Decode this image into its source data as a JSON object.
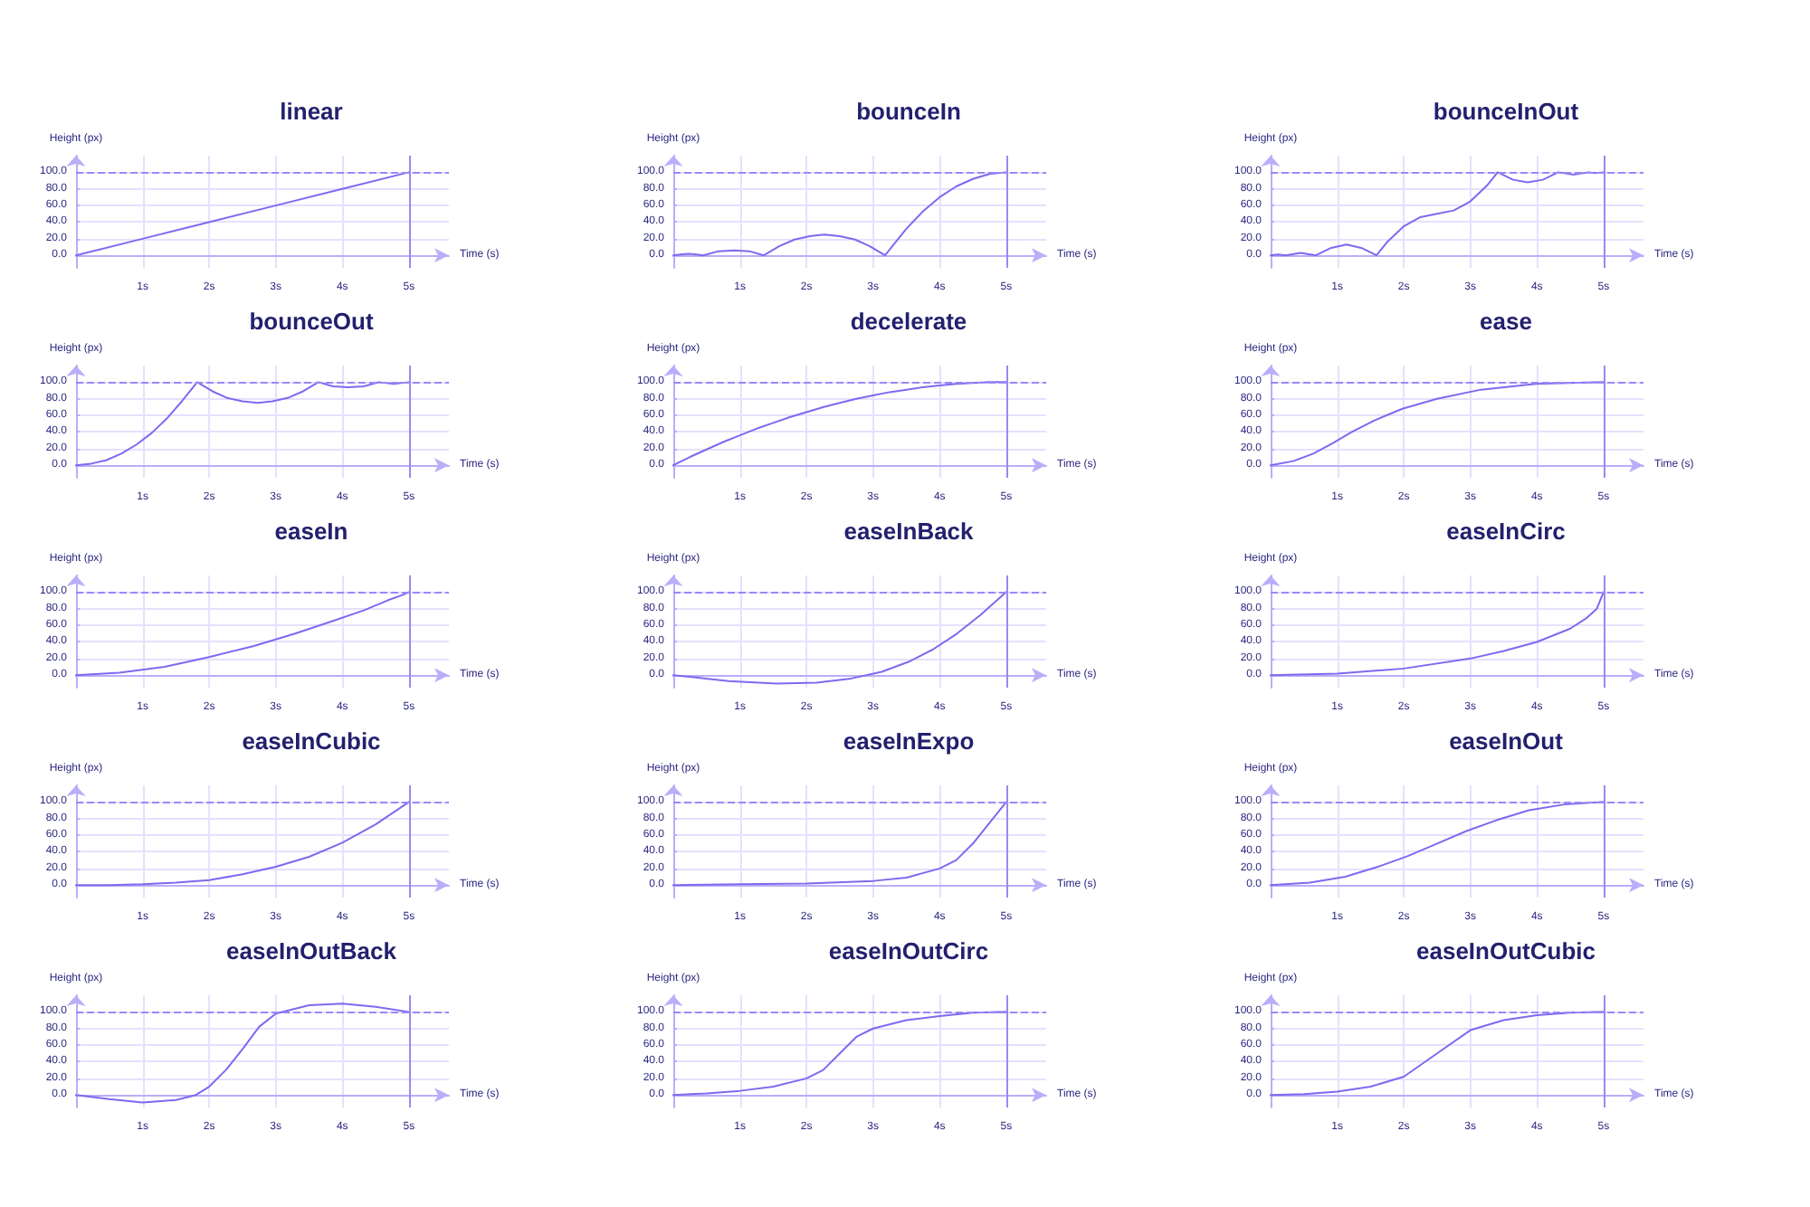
{
  "chart_data": [
    {
      "type": "line",
      "title": "linear",
      "xlabel": "Time (s)",
      "ylabel": "Height (px)",
      "color": "#8068f0",
      "x": [
        0,
        1,
        2,
        3,
        4,
        5
      ],
      "values": [
        0,
        20,
        40,
        60,
        80,
        100
      ],
      "xlim": [
        0,
        5.6
      ],
      "ylim": [
        -15,
        120
      ],
      "xticks": [
        {
          "value": 1,
          "label": "1s"
        },
        {
          "value": 2,
          "label": "2s"
        },
        {
          "value": 3,
          "label": "3s"
        },
        {
          "value": 4,
          "label": "4s"
        },
        {
          "value": 5,
          "label": "5s"
        }
      ],
      "yticks": [
        {
          "value": 0,
          "label": "0.0"
        },
        {
          "value": 20,
          "label": "20.0"
        },
        {
          "value": 40,
          "label": "40.0"
        },
        {
          "value": 60,
          "label": "60.0"
        },
        {
          "value": 80,
          "label": "80.0"
        },
        {
          "value": 100,
          "label": "100.0"
        }
      ],
      "grid": true,
      "ref_lines": [
        {
          "axis": "y",
          "value": 100,
          "line_style": "dashed",
          "color": "#9b88f5"
        },
        {
          "axis": "x",
          "value": 5,
          "line_style": "solid",
          "color": "#9b88f5"
        }
      ]
    },
    {
      "type": "line",
      "title": "bounceIn",
      "xlabel": "Time (s)",
      "ylabel": "Height (px)",
      "color": "#8068f0",
      "x": [
        0,
        0.11,
        0.23,
        0.34,
        0.45,
        0.68,
        0.91,
        1.14,
        1.36,
        1.59,
        1.82,
        2.05,
        2.27,
        2.5,
        2.73,
        2.95,
        3.18,
        3.5,
        3.75,
        4,
        4.25,
        4.5,
        4.75,
        5
      ],
      "values": [
        0,
        1,
        2,
        1,
        0,
        5,
        6,
        5,
        0,
        11,
        19,
        23,
        25,
        23,
        19,
        11,
        0,
        32,
        53,
        70,
        83,
        92,
        98,
        100
      ],
      "xlim": [
        0,
        5.6
      ],
      "ylim": [
        -15,
        120
      ],
      "xticks": [
        {
          "value": 1,
          "label": "1s"
        },
        {
          "value": 2,
          "label": "2s"
        },
        {
          "value": 3,
          "label": "3s"
        },
        {
          "value": 4,
          "label": "4s"
        },
        {
          "value": 5,
          "label": "5s"
        }
      ],
      "yticks": [
        {
          "value": 0,
          "label": "0.0"
        },
        {
          "value": 20,
          "label": "20.0"
        },
        {
          "value": 40,
          "label": "40.0"
        },
        {
          "value": 60,
          "label": "60.0"
        },
        {
          "value": 80,
          "label": "80.0"
        },
        {
          "value": 100,
          "label": "100.0"
        }
      ],
      "grid": true,
      "ref_lines": [
        {
          "axis": "y",
          "value": 100,
          "line_style": "dashed",
          "color": "#9b88f5"
        },
        {
          "axis": "x",
          "value": 5,
          "line_style": "solid",
          "color": "#9b88f5"
        }
      ]
    },
    {
      "type": "line",
      "title": "bounceInOut",
      "xlabel": "Time (s)",
      "ylabel": "Height (px)",
      "color": "#8068f0",
      "x": [
        0,
        0.11,
        0.23,
        0.45,
        0.68,
        0.91,
        1.14,
        1.36,
        1.59,
        1.75,
        2,
        2.25,
        2.5,
        2.75,
        3,
        3.25,
        3.41,
        3.64,
        3.86,
        4.09,
        4.32,
        4.55,
        4.77,
        4.89,
        5
      ],
      "values": [
        0,
        1,
        0,
        3,
        0,
        9,
        13,
        9,
        0,
        16,
        35,
        46,
        50,
        54,
        65,
        84,
        100,
        91,
        88,
        91,
        100,
        97,
        100,
        99,
        100
      ],
      "xlim": [
        0,
        5.6
      ],
      "ylim": [
        -15,
        120
      ],
      "xticks": [
        {
          "value": 1,
          "label": "1s"
        },
        {
          "value": 2,
          "label": "2s"
        },
        {
          "value": 3,
          "label": "3s"
        },
        {
          "value": 4,
          "label": "4s"
        },
        {
          "value": 5,
          "label": "5s"
        }
      ],
      "yticks": [
        {
          "value": 0,
          "label": "0.0"
        },
        {
          "value": 20,
          "label": "20.0"
        },
        {
          "value": 40,
          "label": "40.0"
        },
        {
          "value": 60,
          "label": "60.0"
        },
        {
          "value": 80,
          "label": "80.0"
        },
        {
          "value": 100,
          "label": "100.0"
        }
      ],
      "grid": true,
      "ref_lines": [
        {
          "axis": "y",
          "value": 100,
          "line_style": "dashed",
          "color": "#9b88f5"
        },
        {
          "axis": "x",
          "value": 5,
          "line_style": "solid",
          "color": "#9b88f5"
        }
      ]
    },
    {
      "type": "line",
      "title": "bounceOut",
      "xlabel": "Time (s)",
      "ylabel": "Height (px)",
      "color": "#8068f0",
      "x": [
        0,
        0.23,
        0.45,
        0.68,
        0.91,
        1.14,
        1.36,
        1.59,
        1.82,
        2.05,
        2.27,
        2.5,
        2.73,
        2.95,
        3.18,
        3.41,
        3.64,
        3.86,
        4.09,
        4.32,
        4.55,
        4.77,
        5
      ],
      "values": [
        0,
        2,
        6,
        14,
        25,
        39,
        56,
        77,
        100,
        89,
        81,
        77,
        75,
        77,
        81,
        89,
        100,
        95,
        94,
        95,
        100,
        98,
        100
      ],
      "xlim": [
        0,
        5.6
      ],
      "ylim": [
        -15,
        120
      ],
      "xticks": [
        {
          "value": 1,
          "label": "1s"
        },
        {
          "value": 2,
          "label": "2s"
        },
        {
          "value": 3,
          "label": "3s"
        },
        {
          "value": 4,
          "label": "4s"
        },
        {
          "value": 5,
          "label": "5s"
        }
      ],
      "yticks": [
        {
          "value": 0,
          "label": "0.0"
        },
        {
          "value": 20,
          "label": "20.0"
        },
        {
          "value": 40,
          "label": "40.0"
        },
        {
          "value": 60,
          "label": "60.0"
        },
        {
          "value": 80,
          "label": "80.0"
        },
        {
          "value": 100,
          "label": "100.0"
        }
      ],
      "grid": true,
      "ref_lines": [
        {
          "axis": "y",
          "value": 100,
          "line_style": "dashed",
          "color": "#9b88f5"
        },
        {
          "axis": "x",
          "value": 5,
          "line_style": "solid",
          "color": "#9b88f5"
        }
      ]
    },
    {
      "type": "line",
      "title": "decelerate",
      "xlabel": "Time (s)",
      "ylabel": "Height (px)",
      "color": "#8068f0",
      "x": [
        0,
        0.25,
        0.5,
        0.75,
        1,
        1.25,
        1.5,
        1.75,
        2,
        2.25,
        2.5,
        2.75,
        3,
        3.25,
        3.5,
        3.75,
        4,
        4.25,
        4.5,
        4.75,
        5
      ],
      "values": [
        0,
        10,
        19,
        28,
        36,
        44,
        51,
        58,
        64,
        70,
        75,
        80,
        84,
        88,
        91,
        94,
        96,
        98,
        99,
        100,
        100
      ],
      "xlim": [
        0,
        5.6
      ],
      "ylim": [
        -15,
        120
      ],
      "xticks": [
        {
          "value": 1,
          "label": "1s"
        },
        {
          "value": 2,
          "label": "2s"
        },
        {
          "value": 3,
          "label": "3s"
        },
        {
          "value": 4,
          "label": "4s"
        },
        {
          "value": 5,
          "label": "5s"
        }
      ],
      "yticks": [
        {
          "value": 0,
          "label": "0.0"
        },
        {
          "value": 20,
          "label": "20.0"
        },
        {
          "value": 40,
          "label": "40.0"
        },
        {
          "value": 60,
          "label": "60.0"
        },
        {
          "value": 80,
          "label": "80.0"
        },
        {
          "value": 100,
          "label": "100.0"
        }
      ],
      "grid": true,
      "ref_lines": [
        {
          "axis": "y",
          "value": 100,
          "line_style": "dashed",
          "color": "#9b88f5"
        },
        {
          "axis": "x",
          "value": 5,
          "line_style": "solid",
          "color": "#9b88f5"
        }
      ]
    },
    {
      "type": "line",
      "title": "ease",
      "xlabel": "Time (s)",
      "ylabel": "Height (px)",
      "color": "#8068f0",
      "x": [
        0,
        0.34,
        0.64,
        0.92,
        1.22,
        1.56,
        1.98,
        2.5,
        3.16,
        3.98,
        5
      ],
      "values": [
        0,
        5,
        14,
        26,
        40,
        54,
        68,
        80,
        91,
        98,
        100
      ],
      "xlim": [
        0,
        5.6
      ],
      "ylim": [
        -15,
        120
      ],
      "xticks": [
        {
          "value": 1,
          "label": "1s"
        },
        {
          "value": 2,
          "label": "2s"
        },
        {
          "value": 3,
          "label": "3s"
        },
        {
          "value": 4,
          "label": "4s"
        },
        {
          "value": 5,
          "label": "5s"
        }
      ],
      "yticks": [
        {
          "value": 0,
          "label": "0.0"
        },
        {
          "value": 20,
          "label": "20.0"
        },
        {
          "value": 40,
          "label": "40.0"
        },
        {
          "value": 60,
          "label": "60.0"
        },
        {
          "value": 80,
          "label": "80.0"
        },
        {
          "value": 100,
          "label": "100.0"
        }
      ],
      "grid": true,
      "ref_lines": [
        {
          "axis": "y",
          "value": 100,
          "line_style": "dashed",
          "color": "#9b88f5"
        },
        {
          "axis": "x",
          "value": 5,
          "line_style": "solid",
          "color": "#9b88f5"
        }
      ]
    },
    {
      "type": "line",
      "title": "easeIn",
      "xlabel": "Time (s)",
      "ylabel": "Height (px)",
      "color": "#8068f0",
      "x": [
        0,
        0.65,
        1.33,
        2.01,
        2.67,
        3.29,
        3.85,
        4.32,
        4.68,
        4.92,
        5
      ],
      "values": [
        0,
        3,
        10,
        22,
        35,
        50,
        65,
        78,
        90,
        97,
        100
      ],
      "xlim": [
        0,
        5.6
      ],
      "ylim": [
        -15,
        120
      ],
      "xticks": [
        {
          "value": 1,
          "label": "1s"
        },
        {
          "value": 2,
          "label": "2s"
        },
        {
          "value": 3,
          "label": "3s"
        },
        {
          "value": 4,
          "label": "4s"
        },
        {
          "value": 5,
          "label": "5s"
        }
      ],
      "yticks": [
        {
          "value": 0,
          "label": "0.0"
        },
        {
          "value": 20,
          "label": "20.0"
        },
        {
          "value": 40,
          "label": "40.0"
        },
        {
          "value": 60,
          "label": "60.0"
        },
        {
          "value": 80,
          "label": "80.0"
        },
        {
          "value": 100,
          "label": "100.0"
        }
      ],
      "grid": true,
      "ref_lines": [
        {
          "axis": "y",
          "value": 100,
          "line_style": "dashed",
          "color": "#9b88f5"
        },
        {
          "axis": "x",
          "value": 5,
          "line_style": "solid",
          "color": "#9b88f5"
        }
      ]
    },
    {
      "type": "line",
      "title": "easeInBack",
      "xlabel": "Time (s)",
      "ylabel": "Height (px)",
      "color": "#8068f0",
      "x": [
        0,
        0.83,
        1.55,
        2.15,
        2.67,
        3.13,
        3.53,
        3.9,
        4.26,
        4.62,
        5
      ],
      "values": [
        0,
        -7,
        -10,
        -9,
        -4,
        4,
        16,
        31,
        50,
        73,
        100
      ],
      "xlim": [
        0,
        5.6
      ],
      "ylim": [
        -15,
        120
      ],
      "xticks": [
        {
          "value": 1,
          "label": "1s"
        },
        {
          "value": 2,
          "label": "2s"
        },
        {
          "value": 3,
          "label": "3s"
        },
        {
          "value": 4,
          "label": "4s"
        },
        {
          "value": 5,
          "label": "5s"
        }
      ],
      "yticks": [
        {
          "value": 0,
          "label": "0.0"
        },
        {
          "value": 20,
          "label": "20.0"
        },
        {
          "value": 40,
          "label": "40.0"
        },
        {
          "value": 60,
          "label": "60.0"
        },
        {
          "value": 80,
          "label": "80.0"
        },
        {
          "value": 100,
          "label": "100.0"
        }
      ],
      "grid": true,
      "ref_lines": [
        {
          "axis": "y",
          "value": 100,
          "line_style": "dashed",
          "color": "#9b88f5"
        },
        {
          "axis": "x",
          "value": 5,
          "line_style": "solid",
          "color": "#9b88f5"
        }
      ]
    },
    {
      "type": "line",
      "title": "easeInCirc",
      "xlabel": "Time (s)",
      "ylabel": "Height (px)",
      "color": "#8068f0",
      "x": [
        0,
        1,
        2,
        3,
        3.5,
        4,
        4.5,
        4.75,
        4.9,
        5
      ],
      "values": [
        0,
        2,
        8,
        20,
        29,
        40,
        56,
        69,
        80,
        100
      ],
      "xlim": [
        0,
        5.6
      ],
      "ylim": [
        -15,
        120
      ],
      "xticks": [
        {
          "value": 1,
          "label": "1s"
        },
        {
          "value": 2,
          "label": "2s"
        },
        {
          "value": 3,
          "label": "3s"
        },
        {
          "value": 4,
          "label": "4s"
        },
        {
          "value": 5,
          "label": "5s"
        }
      ],
      "yticks": [
        {
          "value": 0,
          "label": "0.0"
        },
        {
          "value": 20,
          "label": "20.0"
        },
        {
          "value": 40,
          "label": "40.0"
        },
        {
          "value": 60,
          "label": "60.0"
        },
        {
          "value": 80,
          "label": "80.0"
        },
        {
          "value": 100,
          "label": "100.0"
        }
      ],
      "grid": true,
      "ref_lines": [
        {
          "axis": "y",
          "value": 100,
          "line_style": "dashed",
          "color": "#9b88f5"
        },
        {
          "axis": "x",
          "value": 5,
          "line_style": "solid",
          "color": "#9b88f5"
        }
      ]
    },
    {
      "type": "line",
      "title": "easeInCubic",
      "xlabel": "Time (s)",
      "ylabel": "Height (px)",
      "color": "#8068f0",
      "x": [
        0,
        0.5,
        1,
        1.5,
        2,
        2.5,
        3,
        3.5,
        4,
        4.5,
        5
      ],
      "values": [
        0,
        0,
        1,
        3,
        6,
        13,
        22,
        34,
        51,
        73,
        100
      ],
      "xlim": [
        0,
        5.6
      ],
      "ylim": [
        -15,
        120
      ],
      "xticks": [
        {
          "value": 1,
          "label": "1s"
        },
        {
          "value": 2,
          "label": "2s"
        },
        {
          "value": 3,
          "label": "3s"
        },
        {
          "value": 4,
          "label": "4s"
        },
        {
          "value": 5,
          "label": "5s"
        }
      ],
      "yticks": [
        {
          "value": 0,
          "label": "0.0"
        },
        {
          "value": 20,
          "label": "20.0"
        },
        {
          "value": 40,
          "label": "40.0"
        },
        {
          "value": 60,
          "label": "60.0"
        },
        {
          "value": 80,
          "label": "80.0"
        },
        {
          "value": 100,
          "label": "100.0"
        }
      ],
      "grid": true,
      "ref_lines": [
        {
          "axis": "y",
          "value": 100,
          "line_style": "dashed",
          "color": "#9b88f5"
        },
        {
          "axis": "x",
          "value": 5,
          "line_style": "solid",
          "color": "#9b88f5"
        }
      ]
    },
    {
      "type": "line",
      "title": "easeInExpo",
      "xlabel": "Time (s)",
      "ylabel": "Height (px)",
      "color": "#8068f0",
      "x": [
        0,
        1,
        2,
        3,
        3.5,
        4,
        4.25,
        4.5,
        4.75,
        5
      ],
      "values": [
        0,
        1,
        2,
        5,
        9,
        20,
        30,
        50,
        75,
        100
      ],
      "xlim": [
        0,
        5.6
      ],
      "ylim": [
        -15,
        120
      ],
      "xticks": [
        {
          "value": 1,
          "label": "1s"
        },
        {
          "value": 2,
          "label": "2s"
        },
        {
          "value": 3,
          "label": "3s"
        },
        {
          "value": 4,
          "label": "4s"
        },
        {
          "value": 5,
          "label": "5s"
        }
      ],
      "yticks": [
        {
          "value": 0,
          "label": "0.0"
        },
        {
          "value": 20,
          "label": "20.0"
        },
        {
          "value": 40,
          "label": "40.0"
        },
        {
          "value": 60,
          "label": "60.0"
        },
        {
          "value": 80,
          "label": "80.0"
        },
        {
          "value": 100,
          "label": "100.0"
        }
      ],
      "grid": true,
      "ref_lines": [
        {
          "axis": "y",
          "value": 100,
          "line_style": "dashed",
          "color": "#9b88f5"
        },
        {
          "axis": "x",
          "value": 5,
          "line_style": "solid",
          "color": "#9b88f5"
        }
      ]
    },
    {
      "type": "line",
      "title": "easeInOut",
      "xlabel": "Time (s)",
      "ylabel": "Height (px)",
      "color": "#8068f0",
      "x": [
        0,
        0.59,
        1.12,
        1.61,
        2.06,
        2.5,
        2.94,
        3.39,
        3.88,
        4.41,
        5
      ],
      "values": [
        0,
        3,
        10,
        22,
        35,
        50,
        65,
        78,
        90,
        97,
        100
      ],
      "xlim": [
        0,
        5.6
      ],
      "ylim": [
        -15,
        120
      ],
      "xticks": [
        {
          "value": 1,
          "label": "1s"
        },
        {
          "value": 2,
          "label": "2s"
        },
        {
          "value": 3,
          "label": "3s"
        },
        {
          "value": 4,
          "label": "4s"
        },
        {
          "value": 5,
          "label": "5s"
        }
      ],
      "yticks": [
        {
          "value": 0,
          "label": "0.0"
        },
        {
          "value": 20,
          "label": "20.0"
        },
        {
          "value": 40,
          "label": "40.0"
        },
        {
          "value": 60,
          "label": "60.0"
        },
        {
          "value": 80,
          "label": "80.0"
        },
        {
          "value": 100,
          "label": "100.0"
        }
      ],
      "grid": true,
      "ref_lines": [
        {
          "axis": "y",
          "value": 100,
          "line_style": "dashed",
          "color": "#9b88f5"
        },
        {
          "axis": "x",
          "value": 5,
          "line_style": "solid",
          "color": "#9b88f5"
        }
      ]
    },
    {
      "type": "line",
      "title": "easeInOutBack",
      "xlabel": "Time (s)",
      "ylabel": "Height (px)",
      "color": "#8068f0",
      "x": [
        0,
        0.5,
        1,
        1.5,
        1.8,
        2,
        2.25,
        2.5,
        2.75,
        3,
        3.5,
        4,
        4.5,
        5
      ],
      "values": [
        0,
        -5,
        -9,
        -6,
        0,
        10,
        30,
        55,
        82,
        98,
        108,
        110,
        106,
        100
      ],
      "xlim": [
        0,
        5.6
      ],
      "ylim": [
        -15,
        120
      ],
      "xticks": [
        {
          "value": 1,
          "label": "1s"
        },
        {
          "value": 2,
          "label": "2s"
        },
        {
          "value": 3,
          "label": "3s"
        },
        {
          "value": 4,
          "label": "4s"
        },
        {
          "value": 5,
          "label": "5s"
        }
      ],
      "yticks": [
        {
          "value": 0,
          "label": "0.0"
        },
        {
          "value": 20,
          "label": "20.0"
        },
        {
          "value": 40,
          "label": "40.0"
        },
        {
          "value": 60,
          "label": "60.0"
        },
        {
          "value": 80,
          "label": "80.0"
        },
        {
          "value": 100,
          "label": "100.0"
        }
      ],
      "grid": true,
      "ref_lines": [
        {
          "axis": "y",
          "value": 100,
          "line_style": "dashed",
          "color": "#9b88f5"
        },
        {
          "axis": "x",
          "value": 5,
          "line_style": "solid",
          "color": "#9b88f5"
        }
      ]
    },
    {
      "type": "line",
      "title": "easeInOutCirc",
      "xlabel": "Time (s)",
      "ylabel": "Height (px)",
      "color": "#8068f0",
      "x": [
        0,
        0.5,
        1,
        1.5,
        2,
        2.25,
        2.5,
        2.75,
        3,
        3.5,
        4,
        4.5,
        5
      ],
      "values": [
        0,
        2,
        5,
        10,
        20,
        30,
        50,
        70,
        80,
        90,
        95,
        99,
        100
      ],
      "xlim": [
        0,
        5.6
      ],
      "ylim": [
        -15,
        120
      ],
      "xticks": [
        {
          "value": 1,
          "label": "1s"
        },
        {
          "value": 2,
          "label": "2s"
        },
        {
          "value": 3,
          "label": "3s"
        },
        {
          "value": 4,
          "label": "4s"
        },
        {
          "value": 5,
          "label": "5s"
        }
      ],
      "yticks": [
        {
          "value": 0,
          "label": "0.0"
        },
        {
          "value": 20,
          "label": "20.0"
        },
        {
          "value": 40,
          "label": "40.0"
        },
        {
          "value": 60,
          "label": "60.0"
        },
        {
          "value": 80,
          "label": "80.0"
        },
        {
          "value": 100,
          "label": "100.0"
        }
      ],
      "grid": true,
      "ref_lines": [
        {
          "axis": "y",
          "value": 100,
          "line_style": "dashed",
          "color": "#9b88f5"
        },
        {
          "axis": "x",
          "value": 5,
          "line_style": "solid",
          "color": "#9b88f5"
        }
      ]
    },
    {
      "type": "line",
      "title": "easeInOutCubic",
      "xlabel": "Time (s)",
      "ylabel": "Height (px)",
      "color": "#8068f0",
      "x": [
        0,
        0.5,
        1,
        1.5,
        2,
        2.5,
        3,
        3.5,
        4,
        4.5,
        5
      ],
      "values": [
        0,
        1,
        4,
        10,
        22,
        50,
        78,
        90,
        96,
        99,
        100
      ],
      "xlim": [
        0,
        5.6
      ],
      "ylim": [
        -15,
        120
      ],
      "xticks": [
        {
          "value": 1,
          "label": "1s"
        },
        {
          "value": 2,
          "label": "2s"
        },
        {
          "value": 3,
          "label": "3s"
        },
        {
          "value": 4,
          "label": "4s"
        },
        {
          "value": 5,
          "label": "5s"
        }
      ],
      "yticks": [
        {
          "value": 0,
          "label": "0.0"
        },
        {
          "value": 20,
          "label": "20.0"
        },
        {
          "value": 40,
          "label": "40.0"
        },
        {
          "value": 60,
          "label": "60.0"
        },
        {
          "value": 80,
          "label": "80.0"
        },
        {
          "value": 100,
          "label": "100.0"
        }
      ],
      "grid": true,
      "ref_lines": [
        {
          "axis": "y",
          "value": 100,
          "line_style": "dashed",
          "color": "#9b88f5"
        },
        {
          "axis": "x",
          "value": 5,
          "line_style": "solid",
          "color": "#9b88f5"
        }
      ]
    }
  ]
}
